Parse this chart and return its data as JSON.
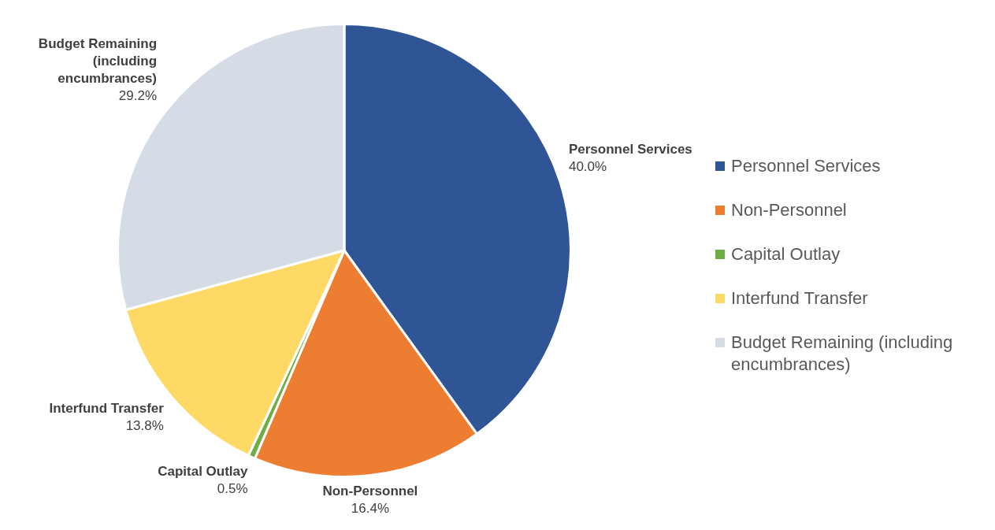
{
  "chart_data": {
    "type": "pie",
    "categories": [
      "Personnel Services",
      "Non-Personnel",
      "Capital Outlay",
      "Interfund Transfer",
      "Budget Remaining (including encumbrances)"
    ],
    "values": [
      40.0,
      16.4,
      0.5,
      13.8,
      29.2
    ],
    "colors": [
      "#2f5597",
      "#ed7d31",
      "#70ad47",
      "#ffd966",
      "#d6dce5"
    ],
    "value_labels": [
      "40.0%",
      "16.4%",
      "0.5%",
      "13.8%",
      "29.2%"
    ],
    "legend": "right"
  }
}
